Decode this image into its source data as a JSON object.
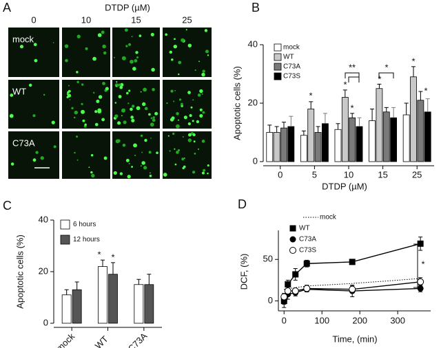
{
  "panel_a": {
    "label": "A",
    "title": "DTDP (µM)",
    "columns": [
      "0",
      "10",
      "15",
      "25"
    ],
    "rows": [
      "mock",
      "WT",
      "C73A"
    ]
  },
  "chart_data": [
    {
      "label": "B",
      "type": "bar",
      "ylabel": "Apoptotic cells (%)",
      "xlabel": "DTDP (µM)",
      "categories": [
        "0",
        "5",
        "10",
        "15",
        "25"
      ],
      "ylim": [
        0,
        40
      ],
      "yticks": [
        0,
        20,
        40
      ],
      "series": [
        {
          "name": "mock",
          "color": "#ffffff",
          "values": [
            10,
            9,
            11,
            14,
            16
          ],
          "errors": [
            2.5,
            1.5,
            2,
            4,
            4
          ]
        },
        {
          "name": "WT",
          "color": "#c8c8c8",
          "values": [
            10,
            18,
            22,
            25,
            29
          ],
          "errors": [
            2,
            2.5,
            2.5,
            1.5,
            3.5
          ]
        },
        {
          "name": "C73A",
          "color": "#7a7a7a",
          "values": [
            11.5,
            10,
            15,
            17,
            21
          ],
          "errors": [
            2,
            2,
            1.5,
            1.5,
            3
          ]
        },
        {
          "name": "C73S",
          "color": "#000000",
          "values": [
            12,
            13,
            12,
            15,
            17
          ],
          "errors": [
            3.5,
            3.5,
            3,
            3.5,
            4.5
          ]
        }
      ],
      "annotations": [
        "*",
        "*",
        "*",
        "**",
        "*",
        "*",
        "*",
        "*"
      ]
    },
    {
      "label": "C",
      "type": "bar",
      "ylabel": "Apoptotic cells (%)",
      "categories": [
        "mock",
        "WT",
        "C73A"
      ],
      "ylim": [
        0,
        40
      ],
      "yticks": [
        0,
        20,
        40
      ],
      "series": [
        {
          "name": "6 hours",
          "color": "#ffffff",
          "values": [
            11,
            22,
            15
          ],
          "errors": [
            2,
            2.5,
            2
          ]
        },
        {
          "name": "12 hours",
          "color": "#555555",
          "values": [
            13,
            19,
            15
          ],
          "errors": [
            3,
            4.5,
            4
          ]
        }
      ],
      "annotations": [
        "*",
        "*"
      ]
    },
    {
      "label": "D",
      "type": "line",
      "ylabel": "DCF, (%)",
      "xlabel": "Time, (min)",
      "xlim": [
        -15,
        387
      ],
      "ylim": [
        -12,
        85
      ],
      "xticks": [
        0,
        100,
        200,
        300
      ],
      "yticks": [
        0,
        50
      ],
      "series": [
        {
          "name": "mock",
          "color": "#000000",
          "linestyle": "dotted",
          "marker": "none",
          "x": [
            0,
            30,
            60,
            180,
            360
          ],
          "values": [
            14,
            16,
            18,
            21,
            27
          ]
        },
        {
          "name": "WT",
          "color": "#000000",
          "linestyle": "solid",
          "marker": "square",
          "x": [
            0,
            10,
            30,
            60,
            180,
            360
          ],
          "values": [
            0,
            20,
            32,
            45,
            47,
            69
          ],
          "errors": [
            4,
            5,
            7,
            4,
            3,
            8
          ]
        },
        {
          "name": "C73A",
          "color": "#000000",
          "linestyle": "solid",
          "marker": "circle",
          "x": [
            0,
            10,
            30,
            60,
            180,
            360
          ],
          "values": [
            0,
            8,
            10,
            14,
            12,
            15
          ],
          "errors": [
            8,
            6,
            4,
            3,
            7,
            4
          ]
        },
        {
          "name": "C73S",
          "color": "#000000",
          "linestyle": "solid",
          "marker": "open-circle",
          "x": [
            0,
            10,
            30,
            60,
            180,
            360
          ],
          "values": [
            5,
            12,
            12,
            15,
            14,
            23
          ],
          "errors": [
            4,
            3,
            3,
            4,
            4,
            5
          ]
        }
      ],
      "annotations": [
        "*"
      ]
    }
  ]
}
